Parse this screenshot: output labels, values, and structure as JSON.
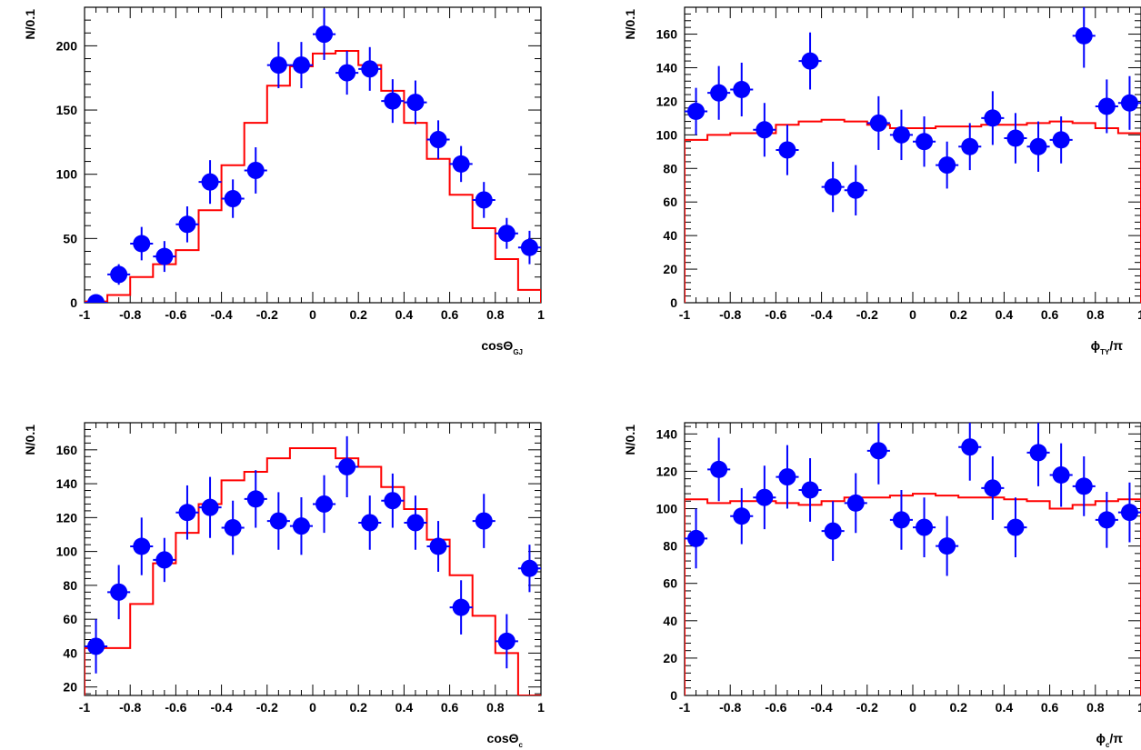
{
  "colors": {
    "data": "#0000ff",
    "model": "#ff0000",
    "axis": "#000000"
  },
  "chart_data": [
    {
      "type": "scatter",
      "title": "",
      "xlabel": "cosΘ",
      "xlabel_sub": "GJ",
      "ylabel": "N/0.1",
      "xlim": [
        -1,
        1
      ],
      "ylim": [
        0,
        230
      ],
      "xticks": [
        "-1",
        "-0.8",
        "-0.6",
        "-0.4",
        "-0.2",
        "0",
        "0.2",
        "0.4",
        "0.6",
        "0.8",
        "1"
      ],
      "yticks": [
        0,
        50,
        100,
        150,
        200
      ],
      "series": [
        {
          "kind": "points_with_errors",
          "x": [
            -0.95,
            -0.85,
            -0.75,
            -0.65,
            -0.55,
            -0.45,
            -0.35,
            -0.25,
            -0.15,
            -0.05,
            0.05,
            0.15,
            0.25,
            0.35,
            0.45,
            0.55,
            0.65,
            0.75,
            0.85,
            0.95
          ],
          "y": [
            0,
            22,
            46,
            36,
            61,
            94,
            81,
            103,
            185,
            185,
            209,
            179,
            182,
            157,
            156,
            127,
            108,
            80,
            54,
            43
          ],
          "err": [
            0,
            8,
            13,
            12,
            14,
            17,
            15,
            18,
            18,
            18,
            20,
            17,
            17,
            17,
            17,
            15,
            14,
            14,
            12,
            13
          ]
        },
        {
          "kind": "step",
          "x_edges": [
            -1,
            -0.9,
            -0.8,
            -0.7,
            -0.6,
            -0.5,
            -0.4,
            -0.3,
            -0.2,
            -0.1,
            0,
            0.1,
            0.2,
            0.3,
            0.4,
            0.5,
            0.6,
            0.7,
            0.8,
            0.9,
            1
          ],
          "y": [
            1,
            6,
            20,
            30,
            41,
            72,
            107,
            140,
            169,
            184,
            194,
            196,
            185,
            165,
            140,
            112,
            84,
            58,
            34,
            10
          ]
        }
      ]
    },
    {
      "type": "scatter",
      "title": "",
      "xlabel": "ϕ",
      "xlabel_sub": "TY",
      "xlabel_suffix": "/π",
      "ylabel": "N/0.1",
      "xlim": [
        -1,
        1
      ],
      "ylim": [
        0,
        176
      ],
      "xticks": [
        "-1",
        "-0.8",
        "-0.6",
        "-0.4",
        "-0.2",
        "0",
        "0.2",
        "0.4",
        "0.6",
        "0.8",
        "1"
      ],
      "yticks": [
        0,
        20,
        40,
        60,
        80,
        100,
        120,
        140,
        160
      ],
      "series": [
        {
          "kind": "points_with_errors",
          "x": [
            -0.95,
            -0.85,
            -0.75,
            -0.65,
            -0.55,
            -0.45,
            -0.35,
            -0.25,
            -0.15,
            -0.05,
            0.05,
            0.15,
            0.25,
            0.35,
            0.45,
            0.55,
            0.65,
            0.75,
            0.85,
            0.95
          ],
          "y": [
            114,
            125,
            127,
            103,
            91,
            144,
            69,
            67,
            107,
            100,
            96,
            82,
            93,
            110,
            98,
            93,
            97,
            159,
            117,
            119
          ],
          "err": [
            14,
            16,
            16,
            16,
            15,
            17,
            15,
            15,
            16,
            15,
            15,
            14,
            14,
            16,
            15,
            15,
            14,
            19,
            16,
            16
          ]
        },
        {
          "kind": "step",
          "x_edges": [
            -1,
            -0.9,
            -0.8,
            -0.7,
            -0.6,
            -0.5,
            -0.4,
            -0.3,
            -0.2,
            -0.1,
            0,
            0.1,
            0.2,
            0.3,
            0.4,
            0.5,
            0.6,
            0.7,
            0.8,
            0.9,
            1
          ],
          "y": [
            97,
            100,
            101,
            101,
            106,
            108,
            109,
            108,
            106,
            104,
            104,
            105,
            105,
            106,
            106,
            107,
            108,
            107,
            104,
            101
          ]
        }
      ]
    },
    {
      "type": "scatter",
      "title": "",
      "xlabel": "cosΘ",
      "xlabel_sub": "c",
      "ylabel": "N/0.1",
      "xlim": [
        -1,
        1
      ],
      "ylim": [
        15,
        176
      ],
      "xticks": [
        "-1",
        "-0.8",
        "-0.6",
        "-0.4",
        "-0.2",
        "0",
        "0.2",
        "0.4",
        "0.6",
        "0.8",
        "1"
      ],
      "yticks": [
        20,
        40,
        60,
        80,
        100,
        120,
        140,
        160
      ],
      "series": [
        {
          "kind": "points_with_errors",
          "x": [
            -0.95,
            -0.85,
            -0.75,
            -0.65,
            -0.55,
            -0.45,
            -0.35,
            -0.25,
            -0.15,
            -0.05,
            0.05,
            0.15,
            0.25,
            0.35,
            0.45,
            0.55,
            0.65,
            0.75,
            0.85,
            0.95
          ],
          "y": [
            44,
            76,
            103,
            95,
            123,
            126,
            114,
            131,
            118,
            115,
            128,
            150,
            117,
            130,
            117,
            103,
            67,
            118,
            47,
            90
          ],
          "err": [
            16,
            16,
            17,
            13,
            16,
            18,
            16,
            17,
            17,
            17,
            17,
            18,
            16,
            16,
            16,
            15,
            16,
            16,
            16,
            14
          ]
        },
        {
          "kind": "step",
          "x_edges": [
            -1,
            -0.9,
            -0.8,
            -0.7,
            -0.6,
            -0.5,
            -0.4,
            -0.3,
            -0.2,
            -0.1,
            0,
            0.1,
            0.2,
            0.3,
            0.4,
            0.5,
            0.6,
            0.7,
            0.8,
            0.9,
            1
          ],
          "y": [
            43,
            43,
            69,
            93,
            111,
            128,
            142,
            147,
            155,
            161,
            161,
            155,
            150,
            138,
            125,
            107,
            86,
            62,
            40,
            15
          ]
        }
      ]
    },
    {
      "type": "scatter",
      "title": "",
      "xlabel": "ϕ",
      "xlabel_sub": "c",
      "xlabel_suffix": "/π",
      "ylabel": "N/0.1",
      "xlim": [
        -1,
        1
      ],
      "ylim": [
        0,
        146
      ],
      "xticks": [
        "-1",
        "-0.8",
        "-0.6",
        "-0.4",
        "-0.2",
        "0",
        "0.2",
        "0.4",
        "0.6",
        "0.8",
        "1"
      ],
      "yticks": [
        0,
        20,
        40,
        60,
        80,
        100,
        120,
        140
      ],
      "series": [
        {
          "kind": "points_with_errors",
          "x": [
            -0.95,
            -0.85,
            -0.75,
            -0.65,
            -0.55,
            -0.45,
            -0.35,
            -0.25,
            -0.15,
            -0.05,
            0.05,
            0.15,
            0.25,
            0.35,
            0.45,
            0.55,
            0.65,
            0.75,
            0.85,
            0.95
          ],
          "y": [
            84,
            121,
            96,
            106,
            117,
            110,
            88,
            103,
            131,
            94,
            90,
            80,
            133,
            111,
            90,
            130,
            118,
            112,
            94,
            98
          ],
          "err": [
            16,
            17,
            15,
            17,
            17,
            17,
            16,
            16,
            18,
            16,
            16,
            16,
            18,
            17,
            16,
            18,
            17,
            16,
            15,
            16
          ]
        },
        {
          "kind": "step",
          "x_edges": [
            -1,
            -0.9,
            -0.8,
            -0.7,
            -0.6,
            -0.5,
            -0.4,
            -0.3,
            -0.2,
            -0.1,
            0,
            0.1,
            0.2,
            0.3,
            0.4,
            0.5,
            0.6,
            0.7,
            0.8,
            0.9,
            1
          ],
          "y": [
            105,
            103,
            104,
            104,
            103,
            102,
            104,
            106,
            106,
            107,
            108,
            107,
            106,
            106,
            105,
            104,
            100,
            102,
            104,
            105
          ]
        }
      ]
    }
  ]
}
